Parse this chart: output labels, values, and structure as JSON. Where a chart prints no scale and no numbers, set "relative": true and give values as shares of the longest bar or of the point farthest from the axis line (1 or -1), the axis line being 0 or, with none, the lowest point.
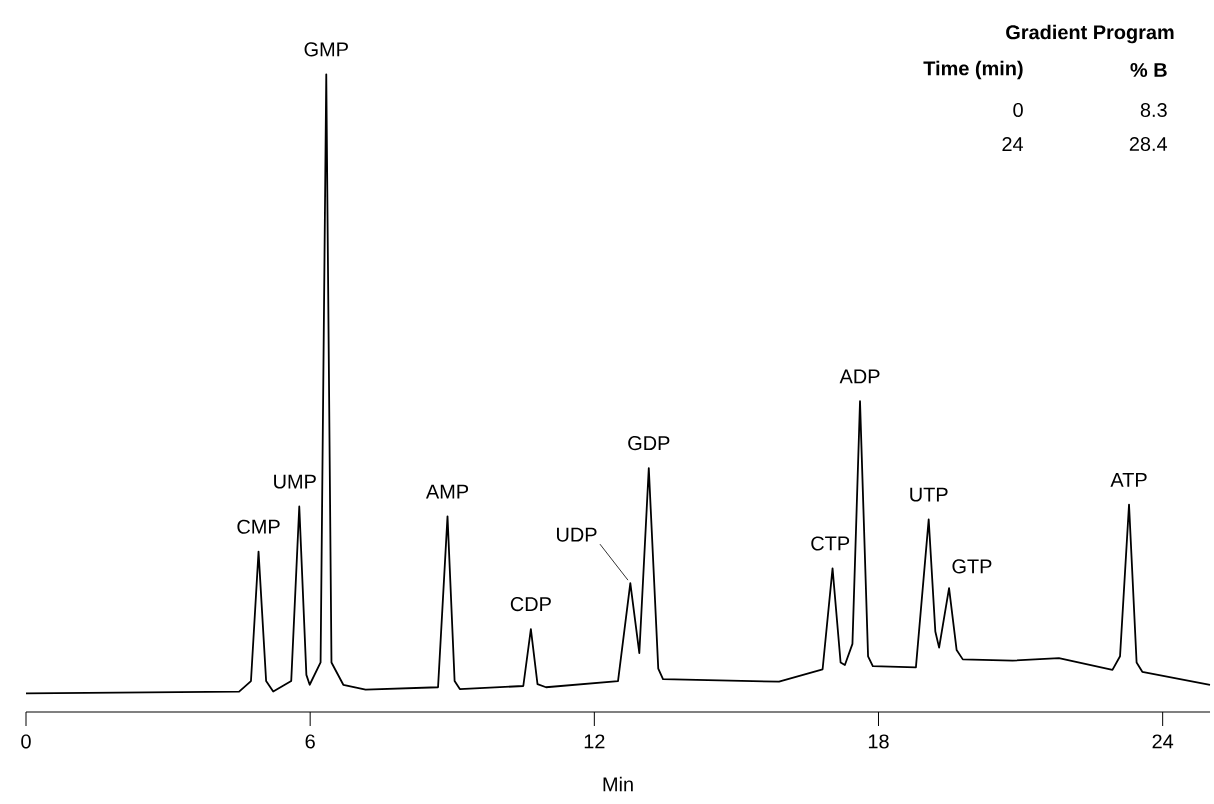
{
  "chart_data": {
    "type": "line",
    "relative": true,
    "xlabel": "Min",
    "xlim": [
      0,
      25
    ],
    "xticks": [
      0,
      6,
      12,
      18,
      24
    ],
    "grid": false,
    "series": [
      {
        "color": "#000000",
        "x": [
          0,
          4.5,
          4.75,
          4.91,
          5.07,
          5.22,
          5.6,
          5.77,
          5.92,
          5.99,
          6.22,
          6.34,
          6.45,
          6.7,
          7.17,
          8.7,
          8.9,
          9.05,
          9.16,
          10.5,
          10.66,
          10.8,
          10.98,
          12.5,
          12.76,
          12.95,
          13.15,
          13.35,
          13.45,
          15.9,
          16.82,
          17.03,
          17.2,
          17.29,
          17.45,
          17.61,
          17.78,
          17.88,
          18.79,
          19.06,
          19.2,
          19.28,
          19.49,
          19.65,
          19.78,
          20.83,
          21.81,
          22.94,
          23.1,
          23.29,
          23.45,
          23.57,
          25
        ],
        "values": [
          0,
          0.003,
          0.02,
          0.229,
          0.02,
          0.003,
          0.02,
          0.302,
          0.03,
          0.014,
          0.05,
          1.0,
          0.05,
          0.014,
          0.006,
          0.01,
          0.286,
          0.02,
          0.007,
          0.012,
          0.104,
          0.015,
          0.01,
          0.02,
          0.178,
          0.065,
          0.364,
          0.04,
          0.023,
          0.019,
          0.039,
          0.202,
          0.05,
          0.046,
          0.08,
          0.472,
          0.06,
          0.044,
          0.042,
          0.281,
          0.1,
          0.074,
          0.17,
          0.07,
          0.055,
          0.053,
          0.057,
          0.038,
          0.06,
          0.305,
          0.05,
          0.035,
          0.014
        ]
      }
    ],
    "annotations": [
      "Gradient Program",
      "Time (min)",
      "% B",
      "0",
      "8.3",
      "24",
      "28.4",
      {
        "text": "CMP",
        "x": 4.91,
        "y": 0.229
      },
      {
        "text": "UMP",
        "x": 5.77,
        "y": 0.302
      },
      {
        "text": "GMP",
        "x": 6.34,
        "y": 1.0
      },
      {
        "text": "AMP",
        "x": 8.9,
        "y": 0.286
      },
      {
        "text": "CDP",
        "x": 10.66,
        "y": 0.104
      },
      {
        "text": "UDP",
        "x": 12.76,
        "y": 0.178
      },
      {
        "text": "GDP",
        "x": 13.15,
        "y": 0.364
      },
      {
        "text": "CTP",
        "x": 17.03,
        "y": 0.202
      },
      {
        "text": "ADP",
        "x": 17.61,
        "y": 0.472
      },
      {
        "text": "UTP",
        "x": 19.06,
        "y": 0.281
      },
      {
        "text": "GTP",
        "x": 19.49,
        "y": 0.17
      },
      {
        "text": "ATP",
        "x": 23.29,
        "y": 0.305
      }
    ]
  }
}
